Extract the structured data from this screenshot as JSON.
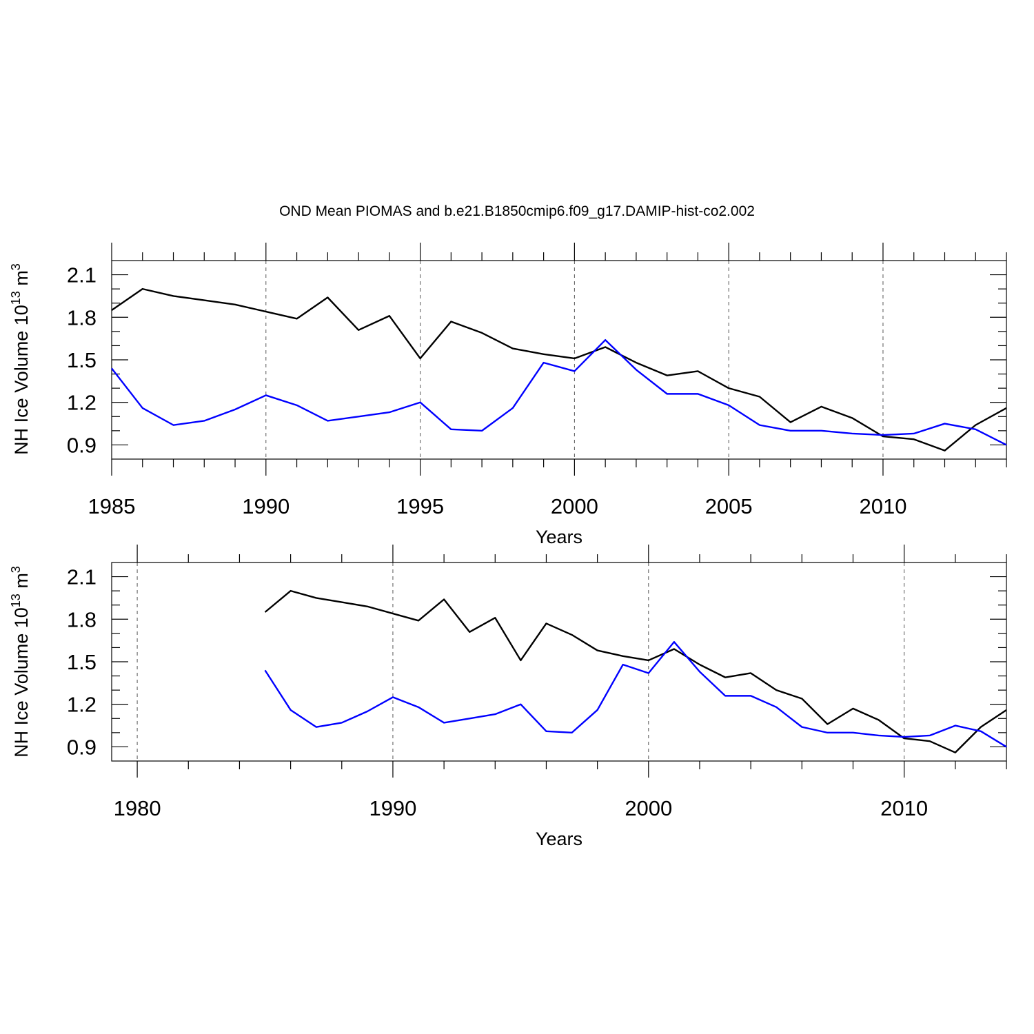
{
  "figure_title": "OND Mean PIOMAS and b.e21.B1850cmip6.f09_g17.DAMIP-hist-co2.002",
  "chart_data": [
    {
      "type": "line",
      "title": "OND Mean PIOMAS and b.e21.B1850cmip6.f09_g17.DAMIP-hist-co2.002",
      "xlabel": "Years",
      "ylabel": {
        "main": "NH Ice Volume 10",
        "exp1": "13",
        "unit": " m",
        "exp2": "3"
      },
      "xlim": [
        1985,
        2014
      ],
      "ylim": [
        0.8,
        2.2
      ],
      "xticks": [
        1985,
        1990,
        1995,
        2000,
        2005,
        2010
      ],
      "xtick_labels": [
        "1985",
        "1990",
        "1995",
        "2000",
        "2005",
        "2010"
      ],
      "x_minor_step": 1,
      "yticks": [
        0.9,
        1.2,
        1.5,
        1.8,
        2.1
      ],
      "ytick_labels": [
        "0.9",
        "1.2",
        "1.5",
        "1.8",
        "2.1"
      ],
      "y_minor_step": 0.1,
      "grid": "x-dashed",
      "x": [
        1985,
        1986,
        1987,
        1988,
        1989,
        1990,
        1991,
        1992,
        1993,
        1994,
        1995,
        1996,
        1997,
        1998,
        1999,
        2000,
        2001,
        2002,
        2003,
        2004,
        2005,
        2006,
        2007,
        2008,
        2009,
        2010,
        2011,
        2012,
        2013,
        2014
      ],
      "series": [
        {
          "name": "PIOMAS",
          "color": "#000000",
          "values": [
            1.85,
            2.0,
            1.95,
            1.92,
            1.89,
            1.84,
            1.79,
            1.94,
            1.71,
            1.81,
            1.51,
            1.77,
            1.69,
            1.58,
            1.54,
            1.51,
            1.59,
            1.48,
            1.39,
            1.42,
            1.3,
            1.24,
            1.06,
            1.17,
            1.09,
            0.96,
            0.94,
            0.86,
            1.04,
            1.16
          ]
        },
        {
          "name": "b.e21.B1850cmip6.f09_g17.DAMIP-hist-co2.002",
          "color": "#0000ff",
          "values": [
            1.44,
            1.16,
            1.04,
            1.07,
            1.15,
            1.25,
            1.18,
            1.07,
            1.1,
            1.13,
            1.2,
            1.01,
            1.0,
            1.16,
            1.48,
            1.42,
            1.64,
            1.43,
            1.26,
            1.26,
            1.18,
            1.04,
            1.0,
            1.0,
            0.98,
            0.97,
            0.98,
            1.05,
            1.01,
            0.9
          ]
        }
      ]
    },
    {
      "type": "line",
      "title": "",
      "xlabel": "Years",
      "ylabel": {
        "main": "NH Ice Volume 10",
        "exp1": "13",
        "unit": " m",
        "exp2": "3"
      },
      "xlim": [
        1979,
        2014
      ],
      "ylim": [
        0.8,
        2.2
      ],
      "xticks": [
        1980,
        1990,
        2000,
        2010
      ],
      "xtick_labels": [
        "1980",
        "1990",
        "2000",
        "2010"
      ],
      "x_minor_step": 2,
      "yticks": [
        0.9,
        1.2,
        1.5,
        1.8,
        2.1
      ],
      "ytick_labels": [
        "0.9",
        "1.2",
        "1.5",
        "1.8",
        "2.1"
      ],
      "y_minor_step": 0.1,
      "grid": "x-dashed",
      "x": [
        1985,
        1986,
        1987,
        1988,
        1989,
        1990,
        1991,
        1992,
        1993,
        1994,
        1995,
        1996,
        1997,
        1998,
        1999,
        2000,
        2001,
        2002,
        2003,
        2004,
        2005,
        2006,
        2007,
        2008,
        2009,
        2010,
        2011,
        2012,
        2013,
        2014
      ],
      "series": [
        {
          "name": "PIOMAS",
          "color": "#000000",
          "values": [
            1.85,
            2.0,
            1.95,
            1.92,
            1.89,
            1.84,
            1.79,
            1.94,
            1.71,
            1.81,
            1.51,
            1.77,
            1.69,
            1.58,
            1.54,
            1.51,
            1.59,
            1.48,
            1.39,
            1.42,
            1.3,
            1.24,
            1.06,
            1.17,
            1.09,
            0.96,
            0.94,
            0.86,
            1.04,
            1.16
          ]
        },
        {
          "name": "b.e21.B1850cmip6.f09_g17.DAMIP-hist-co2.002",
          "color": "#0000ff",
          "values": [
            1.44,
            1.16,
            1.04,
            1.07,
            1.15,
            1.25,
            1.18,
            1.07,
            1.1,
            1.13,
            1.2,
            1.01,
            1.0,
            1.16,
            1.48,
            1.42,
            1.64,
            1.43,
            1.26,
            1.26,
            1.18,
            1.04,
            1.0,
            1.0,
            0.98,
            0.97,
            0.98,
            1.05,
            1.01,
            0.9
          ]
        }
      ]
    }
  ]
}
